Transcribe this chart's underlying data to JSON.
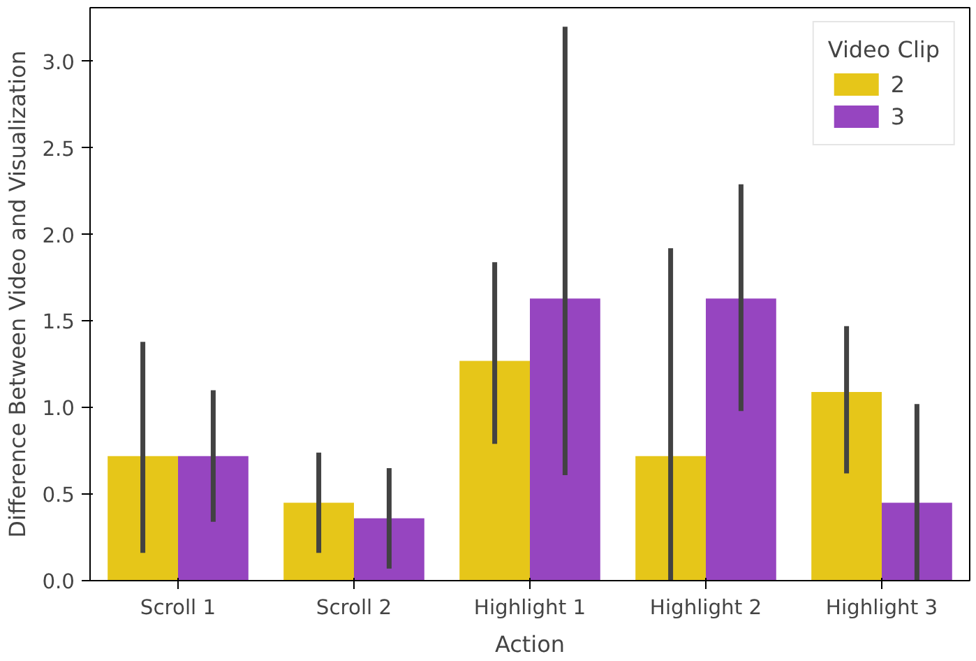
{
  "chart_data": {
    "type": "bar",
    "xlabel": "Action",
    "ylabel": "Difference Between Video and Visualization",
    "legend_title": "Video Clip",
    "legend": "top right",
    "grid": false,
    "categories": [
      "Scroll 1",
      "Scroll 2",
      "Highlight 1",
      "Highlight 2",
      "Highlight 3"
    ],
    "ylim": [
      0,
      3.31
    ],
    "yticks": [
      {
        "value": 0,
        "label": "0.0"
      },
      {
        "value": 0.5,
        "label": "0.5"
      },
      {
        "value": 1,
        "label": "1.0"
      },
      {
        "value": 1.5,
        "label": "1.5"
      },
      {
        "value": 2,
        "label": "2.0"
      },
      {
        "value": 2.5,
        "label": "2.5"
      },
      {
        "value": 3,
        "label": "3.0"
      }
    ],
    "series": [
      {
        "name": "2",
        "color": "#e6c619",
        "values": [
          0.72,
          0.45,
          1.27,
          0.72,
          1.09
        ],
        "errors": [
          [
            0.16,
            1.38
          ],
          [
            0.16,
            0.74
          ],
          [
            0.79,
            1.84
          ],
          [
            0.0,
            1.92
          ],
          [
            0.62,
            1.47
          ]
        ]
      },
      {
        "name": "3",
        "color": "#9645c0",
        "values": [
          0.72,
          0.36,
          1.63,
          1.63,
          0.45
        ],
        "errors": [
          [
            0.34,
            1.1
          ],
          [
            0.07,
            0.65
          ],
          [
            0.61,
            3.2
          ],
          [
            0.98,
            2.29
          ],
          [
            0.0,
            1.02
          ]
        ]
      }
    ]
  }
}
